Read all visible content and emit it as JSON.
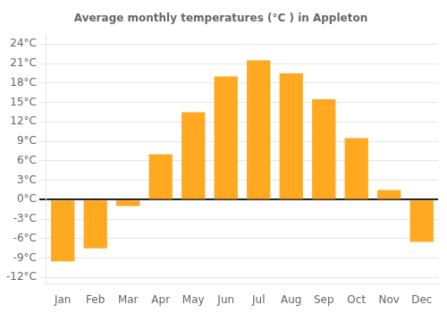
{
  "chart_data": {
    "type": "bar",
    "title": "Average monthly temperatures (°C ) in Appleton",
    "categories": [
      "Jan",
      "Feb",
      "Mar",
      "Apr",
      "May",
      "Jun",
      "Jul",
      "Aug",
      "Sep",
      "Oct",
      "Nov",
      "Dec"
    ],
    "values": [
      -9.5,
      -7.5,
      -1.0,
      7.0,
      13.5,
      19.0,
      21.5,
      19.5,
      15.5,
      9.5,
      1.5,
      -6.5
    ],
    "color": "#FFA820",
    "ylim": [
      -13,
      25.5
    ],
    "yticks": [
      {
        "value": -12,
        "label": "-12°C"
      },
      {
        "value": -9,
        "label": "-9°C"
      },
      {
        "value": -6,
        "label": "-6°C"
      },
      {
        "value": -3,
        "label": "-3°C"
      },
      {
        "value": 0,
        "label": "0°C"
      },
      {
        "value": 3,
        "label": "3°C"
      },
      {
        "value": 6,
        "label": "6°C"
      },
      {
        "value": 9,
        "label": "9°C"
      },
      {
        "value": 12,
        "label": "12°C"
      },
      {
        "value": 15,
        "label": "15°C"
      },
      {
        "value": 18,
        "label": "18°C"
      },
      {
        "value": 21,
        "label": "21°C"
      },
      {
        "value": 24,
        "label": "24°C"
      }
    ],
    "grid": true
  }
}
